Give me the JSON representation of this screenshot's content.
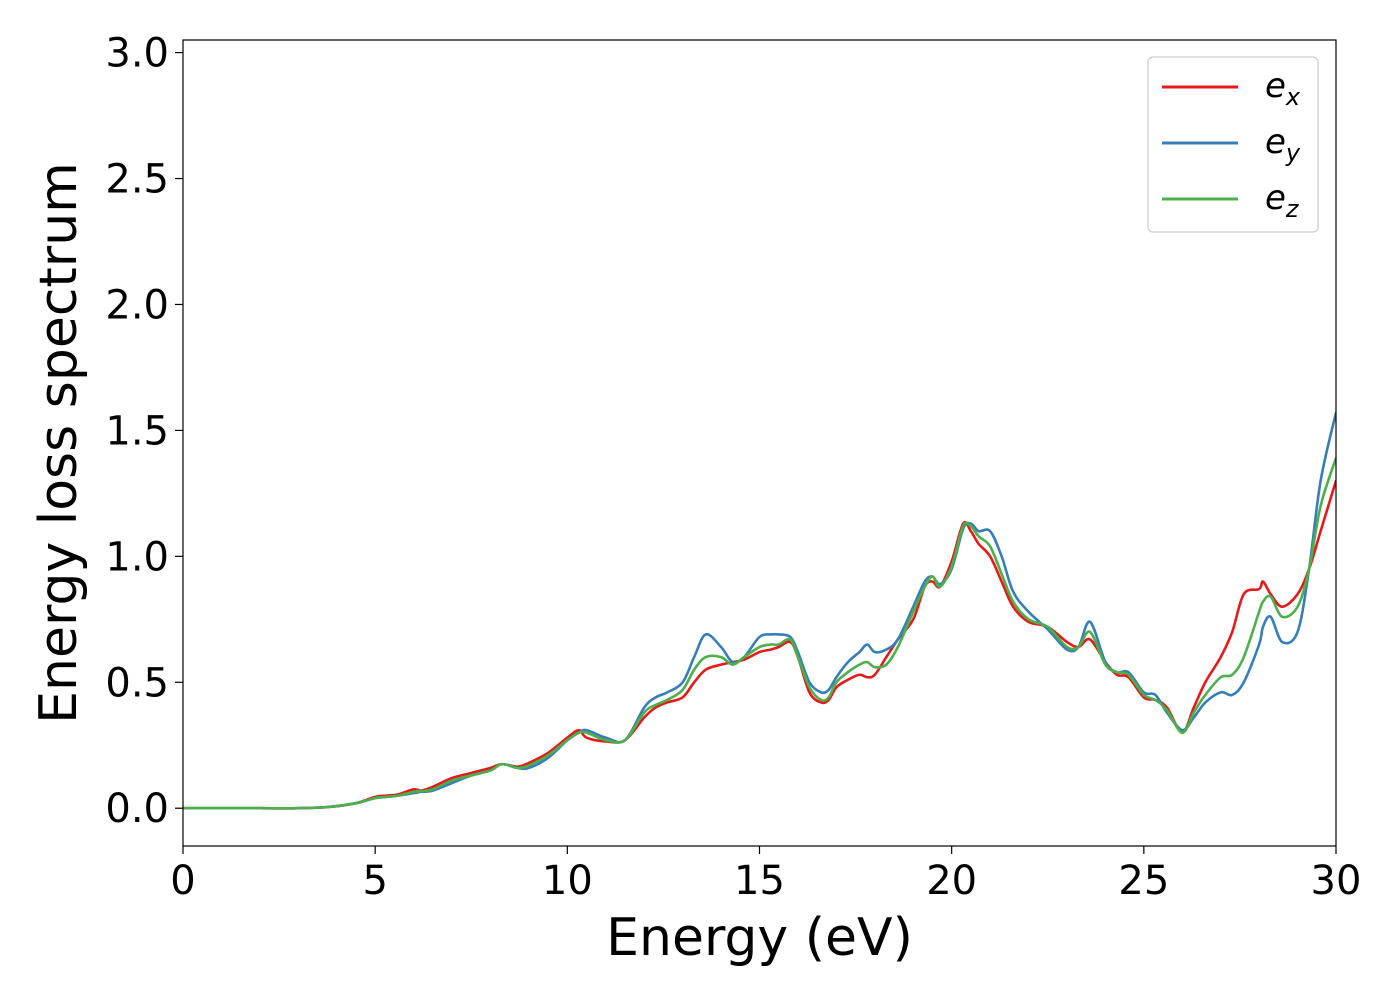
{
  "chart_data": {
    "type": "line",
    "xlabel": "Energy (eV)",
    "ylabel": "Energy loss spectrum",
    "xlim": [
      0,
      30
    ],
    "ylim": [
      -0.15,
      3.05
    ],
    "xticks": [
      "0",
      "5",
      "10",
      "15",
      "20",
      "25",
      "30"
    ],
    "yticks": [
      "0.0",
      "0.5",
      "1.0",
      "1.5",
      "2.0",
      "2.5",
      "3.0"
    ],
    "grid": false,
    "legend_position": "top-right",
    "series": [
      {
        "name": "e_x",
        "label_main": "e",
        "label_sub": "x",
        "color": "#e41a1c",
        "x": [
          0,
          1,
          2,
          3,
          3.8,
          4.5,
          5,
          5.3,
          5.6,
          6,
          6.2,
          6.5,
          7,
          7.5,
          8,
          8.3,
          8.7,
          9,
          9.5,
          10,
          10.3,
          10.5,
          11,
          11.5,
          12,
          12.3,
          12.6,
          13,
          13.3,
          13.6,
          14,
          14.3,
          14.6,
          15,
          15.3,
          15.5,
          15.8,
          16,
          16.3,
          16.6,
          16.8,
          17,
          17.3,
          17.6,
          17.8,
          18,
          18.3,
          18.6,
          19,
          19.3,
          19.5,
          19.7,
          20,
          20.3,
          20.5,
          20.7,
          21,
          21.3,
          21.6,
          22,
          22.5,
          23,
          23.3,
          23.6,
          24,
          24.3,
          24.6,
          25,
          25.3,
          25.6,
          26,
          26.3,
          26.6,
          27,
          27.3,
          27.6,
          28,
          28.1,
          28.3,
          28.6,
          29,
          29.3,
          29.6,
          30
        ],
        "y": [
          0,
          0,
          0,
          0,
          0.005,
          0.02,
          0.045,
          0.05,
          0.055,
          0.075,
          0.07,
          0.085,
          0.12,
          0.14,
          0.16,
          0.175,
          0.165,
          0.18,
          0.22,
          0.28,
          0.31,
          0.28,
          0.265,
          0.27,
          0.36,
          0.4,
          0.42,
          0.44,
          0.5,
          0.55,
          0.57,
          0.58,
          0.59,
          0.62,
          0.63,
          0.64,
          0.66,
          0.6,
          0.46,
          0.42,
          0.43,
          0.48,
          0.51,
          0.53,
          0.52,
          0.53,
          0.6,
          0.67,
          0.75,
          0.88,
          0.9,
          0.88,
          0.98,
          1.13,
          1.1,
          1.05,
          1.0,
          0.9,
          0.8,
          0.74,
          0.72,
          0.66,
          0.64,
          0.67,
          0.58,
          0.53,
          0.52,
          0.44,
          0.43,
          0.4,
          0.3,
          0.4,
          0.5,
          0.6,
          0.7,
          0.85,
          0.87,
          0.9,
          0.85,
          0.8,
          0.85,
          0.95,
          1.1,
          1.3
        ]
      },
      {
        "name": "e_y",
        "label_main": "e",
        "label_sub": "y",
        "color": "#377eb8",
        "x": [
          0,
          1,
          2,
          3,
          3.8,
          4.5,
          5,
          5.3,
          5.6,
          6,
          6.2,
          6.5,
          7,
          7.5,
          8,
          8.3,
          8.7,
          9,
          9.5,
          10,
          10.3,
          10.5,
          11,
          11.5,
          12,
          12.3,
          12.6,
          13,
          13.3,
          13.6,
          14,
          14.3,
          14.6,
          15,
          15.3,
          15.5,
          15.8,
          16,
          16.3,
          16.6,
          16.8,
          17,
          17.3,
          17.6,
          17.8,
          18,
          18.3,
          18.6,
          19,
          19.3,
          19.5,
          19.7,
          20,
          20.3,
          20.5,
          20.7,
          21,
          21.3,
          21.6,
          22,
          22.5,
          23,
          23.3,
          23.6,
          24,
          24.3,
          24.6,
          25,
          25.3,
          25.6,
          26,
          26.3,
          26.6,
          27,
          27.3,
          27.6,
          28,
          28.1,
          28.3,
          28.6,
          29,
          29.3,
          29.6,
          30
        ],
        "y": [
          0,
          0,
          0,
          0,
          0.005,
          0.02,
          0.04,
          0.045,
          0.05,
          0.06,
          0.065,
          0.07,
          0.1,
          0.13,
          0.15,
          0.175,
          0.16,
          0.16,
          0.2,
          0.27,
          0.3,
          0.31,
          0.28,
          0.27,
          0.4,
          0.44,
          0.46,
          0.5,
          0.6,
          0.69,
          0.64,
          0.58,
          0.6,
          0.68,
          0.69,
          0.69,
          0.68,
          0.62,
          0.5,
          0.46,
          0.47,
          0.52,
          0.58,
          0.62,
          0.65,
          0.62,
          0.63,
          0.67,
          0.8,
          0.9,
          0.92,
          0.89,
          0.95,
          1.11,
          1.13,
          1.1,
          1.1,
          1.0,
          0.86,
          0.78,
          0.71,
          0.63,
          0.64,
          0.74,
          0.58,
          0.54,
          0.54,
          0.46,
          0.45,
          0.38,
          0.31,
          0.36,
          0.42,
          0.46,
          0.45,
          0.5,
          0.65,
          0.72,
          0.76,
          0.66,
          0.7,
          0.95,
          1.3,
          1.57
        ]
      },
      {
        "name": "e_z",
        "label_main": "e",
        "label_sub": "z",
        "color": "#4daf4a",
        "x": [
          0,
          1,
          2,
          3,
          3.8,
          4.5,
          5,
          5.3,
          5.6,
          6,
          6.2,
          6.5,
          7,
          7.5,
          8,
          8.3,
          8.7,
          9,
          9.5,
          10,
          10.3,
          10.5,
          11,
          11.5,
          12,
          12.3,
          12.6,
          13,
          13.3,
          13.6,
          14,
          14.3,
          14.6,
          15,
          15.3,
          15.5,
          15.8,
          16,
          16.3,
          16.6,
          16.8,
          17,
          17.3,
          17.6,
          17.8,
          18,
          18.3,
          18.6,
          19,
          19.3,
          19.5,
          19.7,
          20,
          20.3,
          20.5,
          20.7,
          21,
          21.3,
          21.6,
          22,
          22.5,
          23,
          23.3,
          23.6,
          24,
          24.3,
          24.6,
          25,
          25.3,
          25.6,
          26,
          26.3,
          26.6,
          27,
          27.3,
          27.6,
          28,
          28.1,
          28.3,
          28.6,
          29,
          29.3,
          29.6,
          30
        ],
        "y": [
          0,
          0,
          0,
          0,
          0.005,
          0.02,
          0.04,
          0.045,
          0.05,
          0.065,
          0.068,
          0.075,
          0.11,
          0.13,
          0.15,
          0.175,
          0.16,
          0.17,
          0.21,
          0.27,
          0.3,
          0.3,
          0.27,
          0.27,
          0.38,
          0.41,
          0.43,
          0.47,
          0.55,
          0.6,
          0.6,
          0.57,
          0.6,
          0.64,
          0.65,
          0.65,
          0.67,
          0.6,
          0.48,
          0.43,
          0.44,
          0.5,
          0.54,
          0.57,
          0.58,
          0.56,
          0.57,
          0.64,
          0.78,
          0.88,
          0.92,
          0.88,
          0.96,
          1.12,
          1.12,
          1.08,
          1.04,
          0.93,
          0.82,
          0.75,
          0.72,
          0.64,
          0.64,
          0.7,
          0.57,
          0.54,
          0.53,
          0.45,
          0.43,
          0.39,
          0.3,
          0.38,
          0.45,
          0.52,
          0.53,
          0.6,
          0.78,
          0.82,
          0.84,
          0.76,
          0.8,
          0.95,
          1.2,
          1.39
        ]
      }
    ]
  }
}
